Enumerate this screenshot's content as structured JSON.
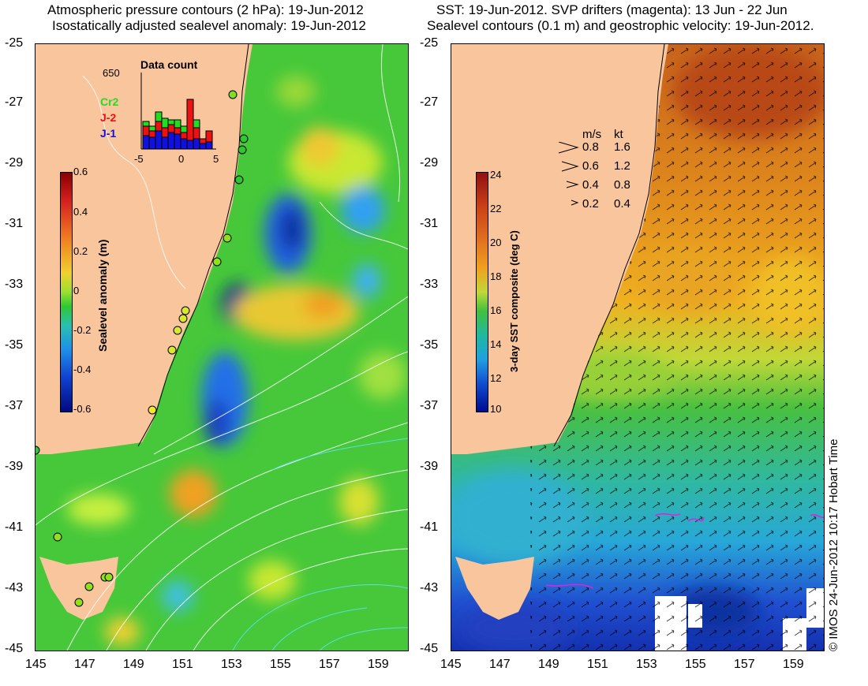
{
  "left_panel": {
    "title_line1": "Atmospheric pressure contours (2 hPa): 19-Jun-2012",
    "title_line2": "Isostatically adjusted sealevel anomaly: 19-Jun-2012",
    "colorbar_label": "Sealevel anomaly (m)",
    "colorbar_ticks": [
      "0.6",
      "0.4",
      "0.2",
      "0",
      "-0.2",
      "-0.4",
      "-0.6"
    ],
    "inset": {
      "title": "Data count",
      "ymax_label": "650",
      "x_ticks": [
        "-5",
        "0",
        "5"
      ],
      "legend": [
        {
          "label": "Cr2",
          "color": "#22dd22"
        },
        {
          "label": "J-2",
          "color": "#ee1111"
        },
        {
          "label": "J-1",
          "color": "#1111dd"
        }
      ]
    }
  },
  "right_panel": {
    "title_line1": "SST: 19-Jun-2012. SVP drifters (magenta): 13 Jun - 22 Jun",
    "title_line2": "Sealevel contours (0.1 m) and geostrophic velocity: 19-Jun-2012.",
    "colorbar_label": "3-day SST composite (deg C)",
    "colorbar_ticks": [
      "24",
      "22",
      "20",
      "18",
      "16",
      "14",
      "12",
      "10"
    ],
    "velocity_legend": {
      "header_ms": "m/s",
      "header_kt": "kt",
      "rows": [
        {
          "ms": "0.8",
          "kt": "1.6"
        },
        {
          "ms": "0.6",
          "kt": "1.2"
        },
        {
          "ms": "0.4",
          "kt": "0.8"
        },
        {
          "ms": "0.2",
          "kt": "0.4"
        }
      ]
    }
  },
  "axes": {
    "lat_ticks": [
      "-25",
      "-27",
      "-29",
      "-31",
      "-33",
      "-35",
      "-37",
      "-39",
      "-41",
      "-43",
      "-45"
    ],
    "lon_ticks": [
      "145",
      "147",
      "149",
      "151",
      "153",
      "155",
      "157",
      "159"
    ]
  },
  "credit": "© IMOS 24-Jun-2012 10:17 Hobart Time",
  "colors": {
    "land": "#f9c59c",
    "sla_bg": "#4ccf32",
    "sst_warm": "#d77a1a",
    "sst_cool": "#2fb6c8"
  }
}
